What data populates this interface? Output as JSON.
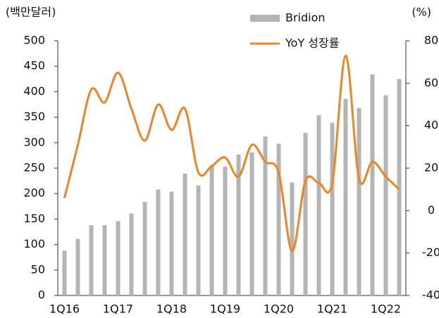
{
  "chart_data": {
    "type": "bar_line",
    "y_unit": "(백만달러)",
    "y2_unit": "(%)",
    "categories": [
      "1Q16",
      null,
      null,
      null,
      "1Q17",
      null,
      null,
      null,
      "1Q18",
      null,
      null,
      null,
      "1Q19",
      null,
      null,
      null,
      "1Q20",
      null,
      null,
      null,
      "1Q21",
      null,
      null,
      null,
      "1Q22",
      null
    ],
    "series": [
      {
        "name": "Bridion",
        "type": "bar",
        "color": "#b4b4b4",
        "axis": "y",
        "values": [
          88,
          111,
          138,
          138,
          146,
          161,
          184,
          208,
          204,
          239,
          216,
          255,
          253,
          277,
          281,
          312,
          298,
          222,
          319,
          354,
          339,
          386,
          368,
          434,
          393,
          425
        ]
      },
      {
        "name": "YoY 성장률",
        "type": "line",
        "color": "#ee8525",
        "axis": "y2",
        "values": [
          6,
          31,
          57,
          51,
          65,
          48,
          33,
          50,
          38,
          48,
          18,
          21,
          25,
          16,
          31,
          23,
          18,
          -19,
          14,
          13,
          13,
          73,
          15,
          23,
          16,
          10
        ]
      }
    ],
    "ylim": [
      0,
      500
    ],
    "yticks": [
      0,
      50,
      100,
      150,
      200,
      250,
      300,
      350,
      400,
      450,
      500
    ],
    "y2lim": [
      -40,
      80
    ],
    "y2ticks": [
      -40,
      -20,
      0,
      20,
      40,
      60,
      80
    ]
  }
}
